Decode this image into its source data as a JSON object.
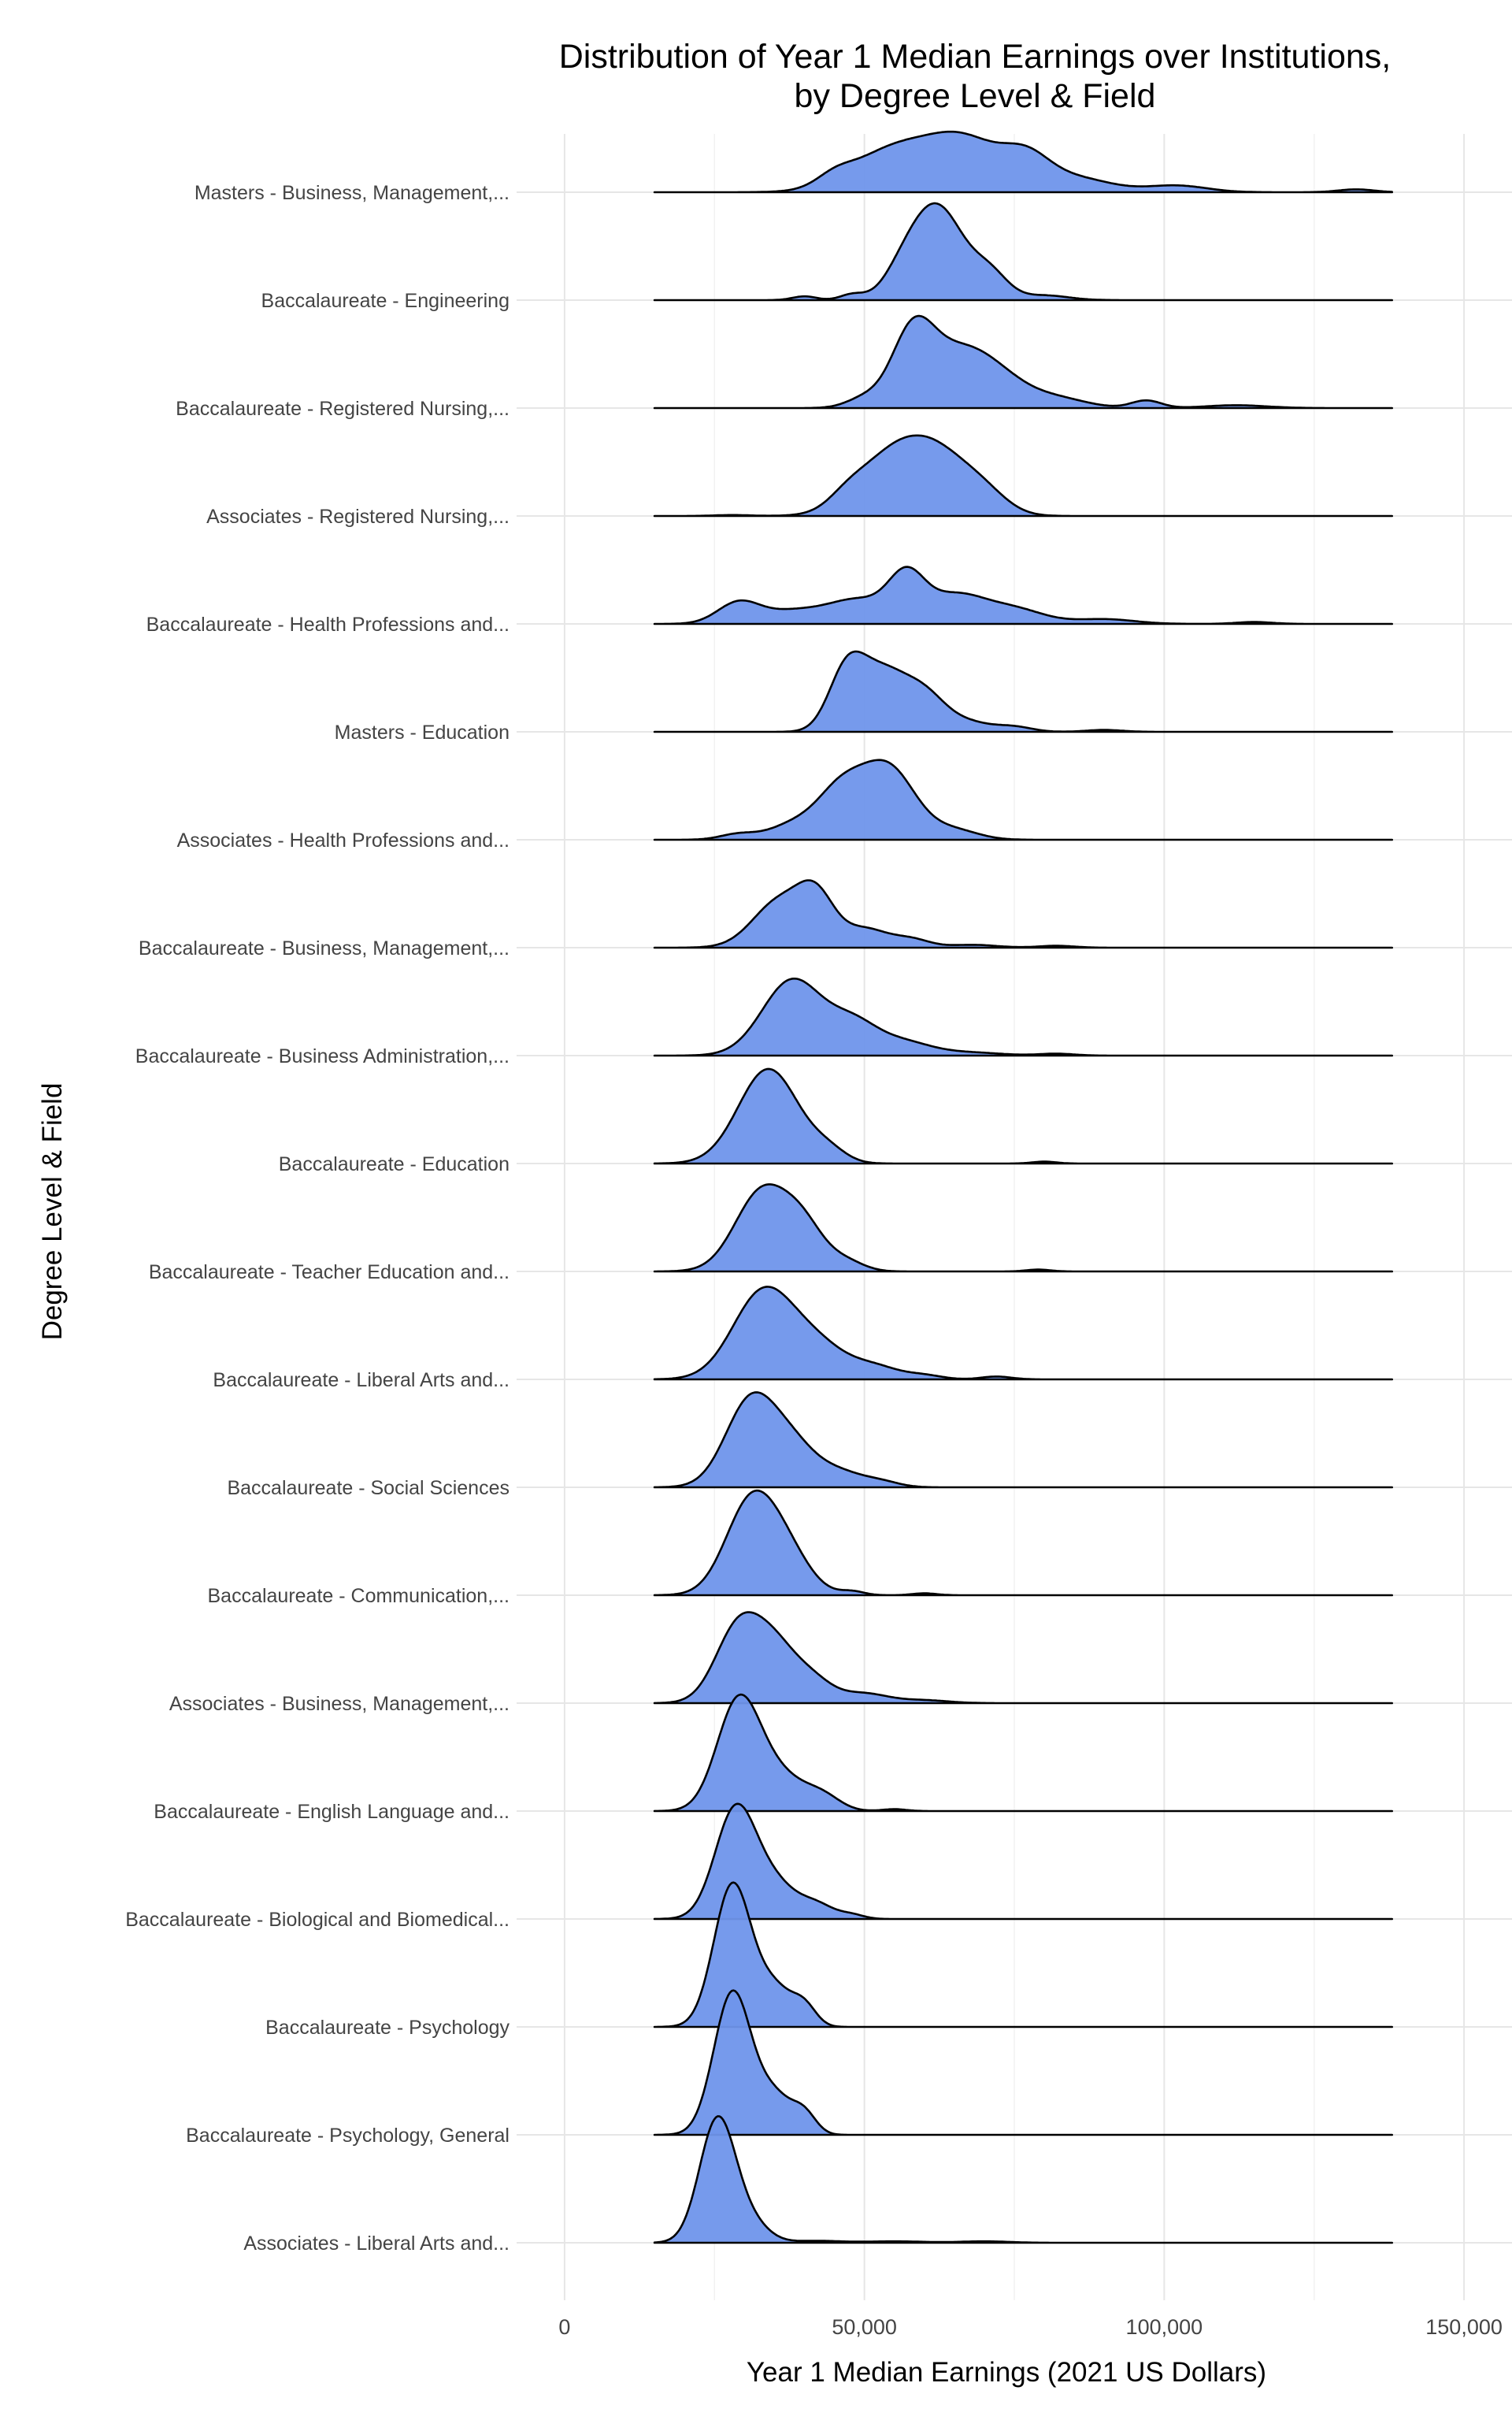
{
  "chart_data": {
    "type": "ridgeline",
    "title_lines": [
      "Distribution of Year 1 Median Earnings over Institutions,",
      "by Degree Level & Field"
    ],
    "xlabel": "Year 1 Median Earnings (2021 US Dollars)",
    "ylabel": "Degree Level & Field",
    "xlim": [
      -8000,
      158000
    ],
    "x_ticks": [
      0,
      50000,
      100000,
      150000
    ],
    "x_tick_labels": [
      "0",
      "50,000",
      "100,000",
      "150,000"
    ],
    "density_range": [
      15000,
      138000
    ],
    "fill_color": "#6f95eb",
    "grid": true,
    "series": [
      {
        "name": "Masters - Business, Management,...",
        "peaks": [
          [
            55000,
            0.45,
            7000
          ],
          [
            67000,
            0.5,
            6000
          ],
          [
            77000,
            0.3,
            4000
          ],
          [
            85000,
            0.15,
            6000
          ],
          [
            102000,
            0.07,
            5000
          ],
          [
            45000,
            0.1,
            3000
          ],
          [
            132000,
            0.03,
            3000
          ]
        ]
      },
      {
        "name": "Baccalaureate - Engineering",
        "peaks": [
          [
            62000,
            1.0,
            4500
          ],
          [
            71000,
            0.25,
            3000
          ],
          [
            56000,
            0.15,
            3000
          ],
          [
            48000,
            0.06,
            2000
          ],
          [
            40000,
            0.04,
            2000
          ],
          [
            80000,
            0.05,
            4000
          ]
        ]
      },
      {
        "name": "Baccalaureate - Registered Nursing,...",
        "peaks": [
          [
            58000,
            0.75,
            3500
          ],
          [
            65000,
            0.5,
            5000
          ],
          [
            72000,
            0.3,
            5000
          ],
          [
            82000,
            0.1,
            5000
          ],
          [
            97000,
            0.08,
            2500
          ],
          [
            50000,
            0.1,
            3000
          ],
          [
            112000,
            0.03,
            5000
          ]
        ]
      },
      {
        "name": "Associates - Registered Nursing,...",
        "peaks": [
          [
            55000,
            0.65,
            6000
          ],
          [
            63000,
            0.45,
            5000
          ],
          [
            70000,
            0.2,
            4000
          ],
          [
            47000,
            0.1,
            3000
          ],
          [
            28000,
            0.01,
            3000
          ]
        ]
      },
      {
        "name": "Baccalaureate - Health Professions and...",
        "peaks": [
          [
            57000,
            0.45,
            3000
          ],
          [
            49000,
            0.25,
            5000
          ],
          [
            65000,
            0.3,
            5000
          ],
          [
            75000,
            0.15,
            5000
          ],
          [
            29000,
            0.22,
            3500
          ],
          [
            38000,
            0.13,
            5000
          ],
          [
            90000,
            0.05,
            5000
          ],
          [
            115000,
            0.02,
            3000
          ]
        ]
      },
      {
        "name": "Masters - Education",
        "peaks": [
          [
            47000,
            0.6,
            3000
          ],
          [
            53000,
            0.6,
            4000
          ],
          [
            60000,
            0.35,
            3500
          ],
          [
            67000,
            0.1,
            4000
          ],
          [
            75000,
            0.05,
            3000
          ],
          [
            90000,
            0.02,
            3000
          ]
        ]
      },
      {
        "name": "Associates - Health Professions and...",
        "peaks": [
          [
            54000,
            0.75,
            4500
          ],
          [
            46000,
            0.5,
            4000
          ],
          [
            38000,
            0.15,
            4000
          ],
          [
            29000,
            0.06,
            3000
          ],
          [
            65000,
            0.1,
            4000
          ]
        ]
      },
      {
        "name": "Baccalaureate - Business, Management,...",
        "peaks": [
          [
            36000,
            0.5,
            4500
          ],
          [
            42000,
            0.45,
            3000
          ],
          [
            50000,
            0.2,
            4000
          ],
          [
            58000,
            0.08,
            3000
          ],
          [
            68000,
            0.03,
            4000
          ],
          [
            82000,
            0.02,
            3000
          ]
        ]
      },
      {
        "name": "Baccalaureate - Business Administration,...",
        "peaks": [
          [
            38000,
            0.8,
            5000
          ],
          [
            48000,
            0.3,
            4000
          ],
          [
            56000,
            0.15,
            5000
          ],
          [
            68000,
            0.03,
            5000
          ],
          [
            82000,
            0.02,
            3000
          ]
        ]
      },
      {
        "name": "Baccalaureate - Education",
        "peaks": [
          [
            34000,
            1.0,
            5000
          ],
          [
            44000,
            0.12,
            3000
          ],
          [
            80000,
            0.02,
            2000
          ]
        ]
      },
      {
        "name": "Baccalaureate - Teacher Education and...",
        "peaks": [
          [
            33000,
            0.85,
            4500
          ],
          [
            40000,
            0.4,
            3500
          ],
          [
            47000,
            0.1,
            3000
          ],
          [
            79000,
            0.02,
            2000
          ]
        ]
      },
      {
        "name": "Baccalaureate - Liberal Arts and...",
        "peaks": [
          [
            33000,
            0.9,
            5000
          ],
          [
            42000,
            0.35,
            5000
          ],
          [
            52000,
            0.12,
            4000
          ],
          [
            60000,
            0.04,
            3000
          ],
          [
            72000,
            0.03,
            2500
          ]
        ]
      },
      {
        "name": "Baccalaureate - Social Sciences",
        "peaks": [
          [
            31000,
            0.9,
            4200
          ],
          [
            38000,
            0.4,
            4000
          ],
          [
            46000,
            0.15,
            4000
          ],
          [
            53000,
            0.05,
            3000
          ]
        ]
      },
      {
        "name": "Baccalaureate - Communication,...",
        "peaks": [
          [
            31000,
            0.95,
            4200
          ],
          [
            37000,
            0.4,
            4000
          ],
          [
            48000,
            0.04,
            2000
          ],
          [
            60000,
            0.02,
            2000
          ]
        ]
      },
      {
        "name": "Associates - Business, Management,...",
        "peaks": [
          [
            29000,
            0.8,
            3800
          ],
          [
            35000,
            0.5,
            3500
          ],
          [
            41000,
            0.25,
            3500
          ],
          [
            50000,
            0.1,
            4000
          ],
          [
            60000,
            0.03,
            4000
          ]
        ]
      },
      {
        "name": "Baccalaureate - English Language and...",
        "peaks": [
          [
            29000,
            1.15,
            3600
          ],
          [
            36000,
            0.35,
            4000
          ],
          [
            43000,
            0.15,
            3000
          ],
          [
            55000,
            0.02,
            2000
          ]
        ]
      },
      {
        "name": "Baccalaureate - Biological and Biomedical...",
        "peaks": [
          [
            28500,
            1.15,
            3400
          ],
          [
            35000,
            0.35,
            3500
          ],
          [
            42000,
            0.15,
            3000
          ],
          [
            48000,
            0.04,
            2000
          ]
        ]
      },
      {
        "name": "Baccalaureate - Psychology",
        "peaks": [
          [
            28000,
            1.5,
            3100
          ],
          [
            35000,
            0.4,
            3000
          ],
          [
            40000,
            0.2,
            2000
          ]
        ]
      },
      {
        "name": "Baccalaureate - Psychology, General",
        "peaks": [
          [
            28000,
            1.5,
            3100
          ],
          [
            35000,
            0.4,
            3000
          ],
          [
            40000,
            0.2,
            2000
          ]
        ]
      },
      {
        "name": "Associates - Liberal Arts and...",
        "peaks": [
          [
            25500,
            1.3,
            3000
          ],
          [
            31000,
            0.2,
            3000
          ],
          [
            42000,
            0.02,
            4000
          ],
          [
            55000,
            0.015,
            5000
          ],
          [
            70000,
            0.015,
            4000
          ]
        ]
      }
    ]
  }
}
